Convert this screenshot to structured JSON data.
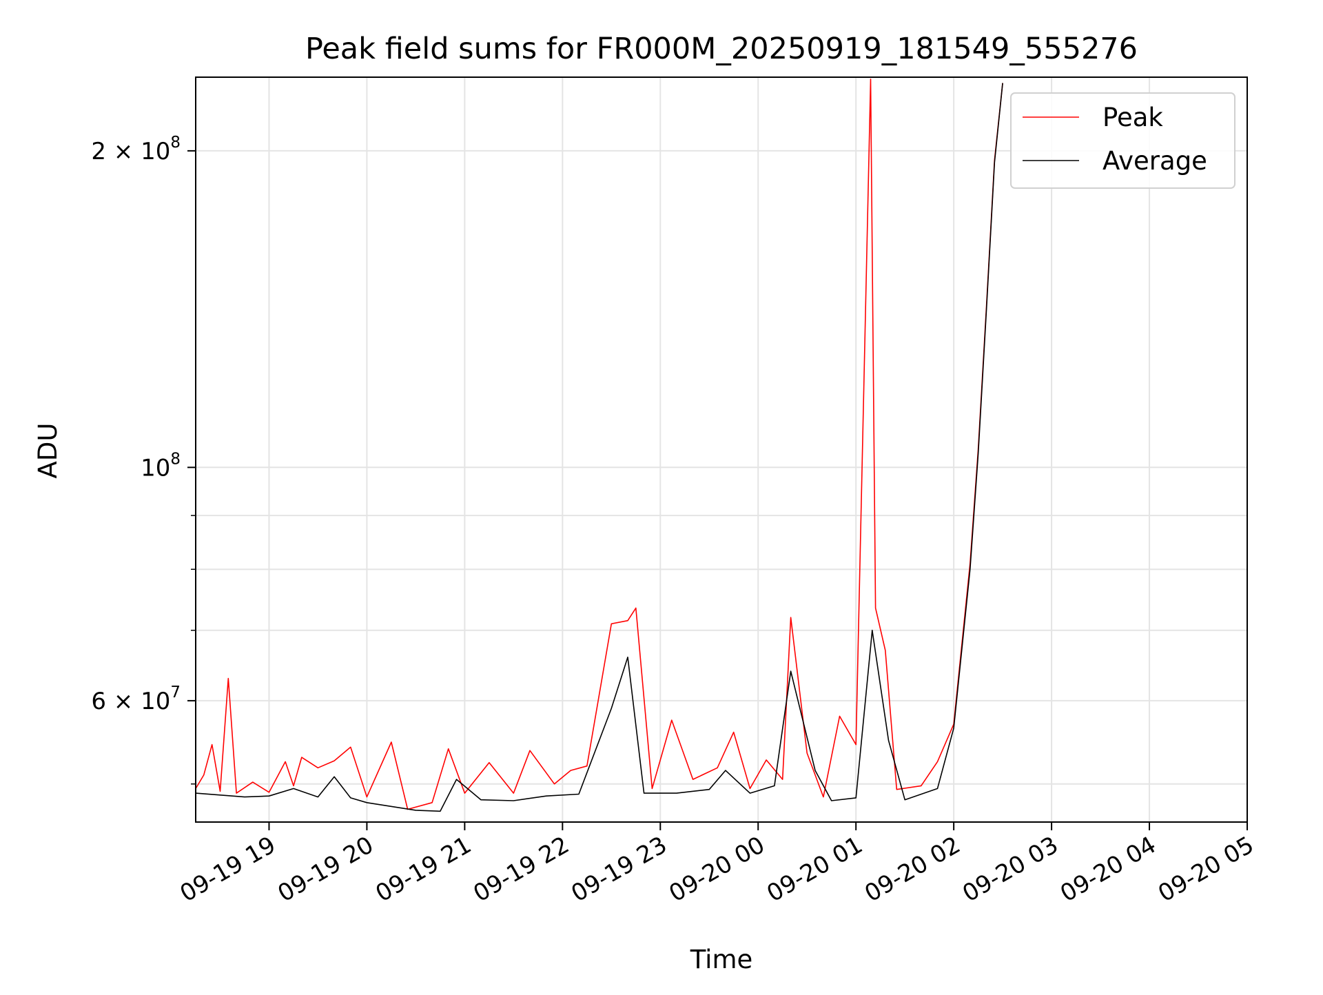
{
  "chart_data": {
    "type": "line",
    "title": "Peak field sums for FR000M_20250919_181549_555276",
    "xlabel": "Time",
    "ylabel": "ADU",
    "y_scale": "log",
    "ylim": [
      46000000,
      235000000
    ],
    "xlim": [
      "2025-09-19 18:15",
      "2025-09-20 05:00"
    ],
    "x_ticks": [
      "09-19 19",
      "09-19 20",
      "09-19 21",
      "09-19 22",
      "09-19 23",
      "09-20 00",
      "09-20 01",
      "09-20 02",
      "09-20 03",
      "09-20 04",
      "09-20 05"
    ],
    "x_tick_times": [
      "2025-09-19 19:00",
      "2025-09-19 20:00",
      "2025-09-19 21:00",
      "2025-09-19 22:00",
      "2025-09-19 23:00",
      "2025-09-20 00:00",
      "2025-09-20 01:00",
      "2025-09-20 02:00",
      "2025-09-20 03:00",
      "2025-09-20 04:00",
      "2025-09-20 05:00"
    ],
    "y_ticks": [
      {
        "value": 200000000,
        "mantissa": "2",
        "exponent": "8"
      },
      {
        "value": 100000000,
        "mantissa": "",
        "exponent": "8"
      },
      {
        "value": 60000000,
        "mantissa": "6",
        "exponent": "7"
      }
    ],
    "y_minor_ticks": [
      50000000,
      70000000,
      80000000,
      90000000
    ],
    "grid": true,
    "legend_position": "top-right",
    "series": [
      {
        "name": "Peak",
        "color": "#ff0000",
        "points": [
          [
            "2025-09-19 18:15",
            49500000
          ],
          [
            "2025-09-19 18:20",
            51000000
          ],
          [
            "2025-09-19 18:25",
            54500000
          ],
          [
            "2025-09-19 18:30",
            49200000
          ],
          [
            "2025-09-19 18:35",
            63000000
          ],
          [
            "2025-09-19 18:40",
            49000000
          ],
          [
            "2025-09-19 18:50",
            50200000
          ],
          [
            "2025-09-19 19:00",
            49100000
          ],
          [
            "2025-09-19 19:10",
            52500000
          ],
          [
            "2025-09-19 19:15",
            49800000
          ],
          [
            "2025-09-19 19:20",
            53000000
          ],
          [
            "2025-09-19 19:30",
            51800000
          ],
          [
            "2025-09-19 19:40",
            52600000
          ],
          [
            "2025-09-19 19:50",
            54200000
          ],
          [
            "2025-09-19 20:00",
            48600000
          ],
          [
            "2025-09-19 20:15",
            54800000
          ],
          [
            "2025-09-19 20:25",
            47300000
          ],
          [
            "2025-09-19 20:40",
            48000000
          ],
          [
            "2025-09-19 20:50",
            54000000
          ],
          [
            "2025-09-19 21:00",
            49000000
          ],
          [
            "2025-09-19 21:15",
            52400000
          ],
          [
            "2025-09-19 21:30",
            49000000
          ],
          [
            "2025-09-19 21:40",
            53800000
          ],
          [
            "2025-09-19 21:55",
            50000000
          ],
          [
            "2025-09-19 22:05",
            51500000
          ],
          [
            "2025-09-19 22:15",
            52000000
          ],
          [
            "2025-09-19 22:30",
            71000000
          ],
          [
            "2025-09-19 22:40",
            71500000
          ],
          [
            "2025-09-19 22:45",
            73500000
          ],
          [
            "2025-09-19 22:55",
            49500000
          ],
          [
            "2025-09-19 23:07",
            57500000
          ],
          [
            "2025-09-19 23:20",
            50500000
          ],
          [
            "2025-09-19 23:35",
            51800000
          ],
          [
            "2025-09-19 23:45",
            56000000
          ],
          [
            "2025-09-19 23:55",
            49500000
          ],
          [
            "2025-09-20 00:05",
            52700000
          ],
          [
            "2025-09-20 00:15",
            50500000
          ],
          [
            "2025-09-20 00:20",
            72000000
          ],
          [
            "2025-09-20 00:30",
            53500000
          ],
          [
            "2025-09-20 00:40",
            48600000
          ],
          [
            "2025-09-20 00:50",
            58000000
          ],
          [
            "2025-09-20 01:00",
            54500000
          ],
          [
            "2025-09-20 01:09",
            234000000
          ],
          [
            "2025-09-20 01:12",
            73500000
          ],
          [
            "2025-09-20 01:18",
            67000000
          ],
          [
            "2025-09-20 01:25",
            49400000
          ],
          [
            "2025-09-20 01:40",
            49800000
          ],
          [
            "2025-09-20 01:50",
            52500000
          ],
          [
            "2025-09-20 02:00",
            57000000
          ],
          [
            "2025-09-20 02:10",
            81000000
          ],
          [
            "2025-09-20 02:15",
            104000000
          ],
          [
            "2025-09-20 02:20",
            142000000
          ],
          [
            "2025-09-20 02:25",
            196000000
          ],
          [
            "2025-09-20 02:30",
            232000000
          ]
        ]
      },
      {
        "name": "Average",
        "color": "#000000",
        "points": [
          [
            "2025-09-19 18:15",
            49000000
          ],
          [
            "2025-09-19 18:30",
            48800000
          ],
          [
            "2025-09-19 18:45",
            48600000
          ],
          [
            "2025-09-19 19:00",
            48700000
          ],
          [
            "2025-09-19 19:15",
            49500000
          ],
          [
            "2025-09-19 19:30",
            48600000
          ],
          [
            "2025-09-19 19:40",
            50800000
          ],
          [
            "2025-09-19 19:50",
            48500000
          ],
          [
            "2025-09-19 20:00",
            48000000
          ],
          [
            "2025-09-19 20:30",
            47200000
          ],
          [
            "2025-09-19 20:45",
            47100000
          ],
          [
            "2025-09-19 20:55",
            50500000
          ],
          [
            "2025-09-19 21:10",
            48300000
          ],
          [
            "2025-09-19 21:30",
            48200000
          ],
          [
            "2025-09-19 21:50",
            48700000
          ],
          [
            "2025-09-19 22:10",
            48900000
          ],
          [
            "2025-09-19 22:30",
            59000000
          ],
          [
            "2025-09-19 22:40",
            66000000
          ],
          [
            "2025-09-19 22:50",
            49000000
          ],
          [
            "2025-09-19 23:10",
            49000000
          ],
          [
            "2025-09-19 23:30",
            49400000
          ],
          [
            "2025-09-19 23:40",
            51500000
          ],
          [
            "2025-09-19 23:55",
            49000000
          ],
          [
            "2025-09-20 00:10",
            49800000
          ],
          [
            "2025-09-20 00:20",
            64000000
          ],
          [
            "2025-09-20 00:35",
            51500000
          ],
          [
            "2025-09-20 00:45",
            48200000
          ],
          [
            "2025-09-20 01:00",
            48500000
          ],
          [
            "2025-09-20 01:10",
            70000000
          ],
          [
            "2025-09-20 01:20",
            55000000
          ],
          [
            "2025-09-20 01:30",
            48300000
          ],
          [
            "2025-09-20 01:50",
            49500000
          ],
          [
            "2025-09-20 02:00",
            56500000
          ],
          [
            "2025-09-20 02:10",
            80000000
          ],
          [
            "2025-09-20 02:15",
            103000000
          ],
          [
            "2025-09-20 02:20",
            141000000
          ],
          [
            "2025-09-20 02:25",
            195000000
          ],
          [
            "2025-09-20 02:30",
            232000000
          ]
        ]
      }
    ]
  }
}
